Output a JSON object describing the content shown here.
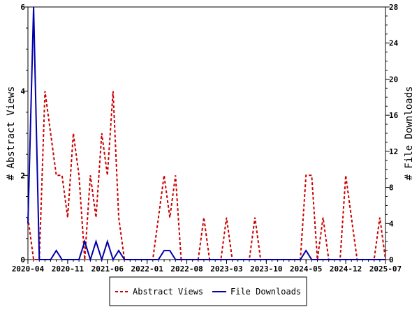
{
  "chart_data": {
    "type": "line",
    "xlabel": "",
    "ylabel_left": "# Abstract Views",
    "ylabel_right": "# File Downloads",
    "x_tick_labels": [
      "2020-04",
      "2020-11",
      "2021-06",
      "2022-01",
      "2022-08",
      "2023-03",
      "2023-10",
      "2024-05",
      "2024-12",
      "2025-07"
    ],
    "y_left_ticks": [
      0,
      2,
      4,
      6
    ],
    "y_right_ticks": [
      0,
      4,
      8,
      12,
      16,
      20,
      24,
      28
    ],
    "y_left_range": [
      0,
      6
    ],
    "y_right_range": [
      0,
      28
    ],
    "grid": false,
    "legend_position": "bottom-center",
    "series": [
      {
        "name": "Abstract Views",
        "axis": "left",
        "color": "#cc0000",
        "style": "dashed",
        "points": [
          [
            "2020-04",
            1
          ],
          [
            "2020-05",
            0
          ],
          [
            "2020-06",
            0
          ],
          [
            "2020-07",
            4
          ],
          [
            "2020-08",
            3
          ],
          [
            "2020-09",
            2
          ],
          [
            "2020-10",
            2
          ],
          [
            "2020-11",
            1
          ],
          [
            "2020-12",
            3
          ],
          [
            "2021-01",
            2
          ],
          [
            "2021-02",
            0
          ],
          [
            "2021-03",
            2
          ],
          [
            "2021-04",
            1
          ],
          [
            "2021-05",
            3
          ],
          [
            "2021-06",
            2
          ],
          [
            "2021-07",
            4
          ],
          [
            "2021-08",
            1
          ],
          [
            "2021-09",
            0
          ],
          [
            "2021-10",
            0
          ],
          [
            "2021-11",
            0
          ],
          [
            "2021-12",
            0
          ],
          [
            "2022-01",
            0
          ],
          [
            "2022-02",
            0
          ],
          [
            "2022-03",
            1
          ],
          [
            "2022-04",
            2
          ],
          [
            "2022-05",
            1
          ],
          [
            "2022-06",
            2
          ],
          [
            "2022-07",
            0
          ],
          [
            "2022-08",
            0
          ],
          [
            "2022-09",
            0
          ],
          [
            "2022-10",
            0
          ],
          [
            "2022-11",
            1
          ],
          [
            "2022-12",
            0
          ],
          [
            "2023-01",
            0
          ],
          [
            "2023-02",
            0
          ],
          [
            "2023-03",
            1
          ],
          [
            "2023-04",
            0
          ],
          [
            "2023-05",
            0
          ],
          [
            "2023-06",
            0
          ],
          [
            "2023-07",
            0
          ],
          [
            "2023-08",
            1
          ],
          [
            "2023-09",
            0
          ],
          [
            "2023-10",
            0
          ],
          [
            "2023-11",
            0
          ],
          [
            "2023-12",
            0
          ],
          [
            "2024-01",
            0
          ],
          [
            "2024-02",
            0
          ],
          [
            "2024-03",
            0
          ],
          [
            "2024-04",
            0
          ],
          [
            "2024-05",
            2
          ],
          [
            "2024-06",
            2
          ],
          [
            "2024-07",
            0
          ],
          [
            "2024-08",
            1
          ],
          [
            "2024-09",
            0
          ],
          [
            "2024-10",
            0
          ],
          [
            "2024-11",
            0
          ],
          [
            "2024-12",
            2
          ],
          [
            "2025-01",
            1
          ],
          [
            "2025-02",
            0
          ],
          [
            "2025-03",
            0
          ],
          [
            "2025-04",
            0
          ],
          [
            "2025-05",
            0
          ],
          [
            "2025-06",
            1
          ],
          [
            "2025-07",
            0
          ]
        ]
      },
      {
        "name": "File Downloads",
        "axis": "right",
        "color": "#0000aa",
        "style": "solid",
        "points": [
          [
            "2020-04",
            4
          ],
          [
            "2020-05",
            28
          ],
          [
            "2020-06",
            0
          ],
          [
            "2020-07",
            0
          ],
          [
            "2020-08",
            0
          ],
          [
            "2020-09",
            1
          ],
          [
            "2020-10",
            0
          ],
          [
            "2020-11",
            0
          ],
          [
            "2020-12",
            0
          ],
          [
            "2021-01",
            0
          ],
          [
            "2021-02",
            2
          ],
          [
            "2021-03",
            0
          ],
          [
            "2021-04",
            2
          ],
          [
            "2021-05",
            0
          ],
          [
            "2021-06",
            2
          ],
          [
            "2021-07",
            0
          ],
          [
            "2021-08",
            1
          ],
          [
            "2021-09",
            0
          ],
          [
            "2021-10",
            0
          ],
          [
            "2021-11",
            0
          ],
          [
            "2021-12",
            0
          ],
          [
            "2022-01",
            0
          ],
          [
            "2022-02",
            0
          ],
          [
            "2022-03",
            0
          ],
          [
            "2022-04",
            1
          ],
          [
            "2022-05",
            1
          ],
          [
            "2022-06",
            0
          ],
          [
            "2022-07",
            0
          ],
          [
            "2022-08",
            0
          ],
          [
            "2022-09",
            0
          ],
          [
            "2022-10",
            0
          ],
          [
            "2022-11",
            0
          ],
          [
            "2022-12",
            0
          ],
          [
            "2023-01",
            0
          ],
          [
            "2023-02",
            0
          ],
          [
            "2023-03",
            0
          ],
          [
            "2023-04",
            0
          ],
          [
            "2023-05",
            0
          ],
          [
            "2023-06",
            0
          ],
          [
            "2023-07",
            0
          ],
          [
            "2023-08",
            0
          ],
          [
            "2023-09",
            0
          ],
          [
            "2023-10",
            0
          ],
          [
            "2023-11",
            0
          ],
          [
            "2023-12",
            0
          ],
          [
            "2024-01",
            0
          ],
          [
            "2024-02",
            0
          ],
          [
            "2024-03",
            0
          ],
          [
            "2024-04",
            0
          ],
          [
            "2024-05",
            1
          ],
          [
            "2024-06",
            0
          ],
          [
            "2024-07",
            0
          ],
          [
            "2024-08",
            0
          ],
          [
            "2024-09",
            0
          ],
          [
            "2024-10",
            0
          ],
          [
            "2024-11",
            0
          ],
          [
            "2024-12",
            0
          ],
          [
            "2025-01",
            0
          ],
          [
            "2025-02",
            0
          ],
          [
            "2025-03",
            0
          ],
          [
            "2025-04",
            0
          ],
          [
            "2025-05",
            0
          ],
          [
            "2025-06",
            0
          ],
          [
            "2025-07",
            0
          ]
        ]
      }
    ]
  },
  "legend": {
    "abstract_views": "Abstract Views",
    "file_downloads": "File Downloads"
  }
}
